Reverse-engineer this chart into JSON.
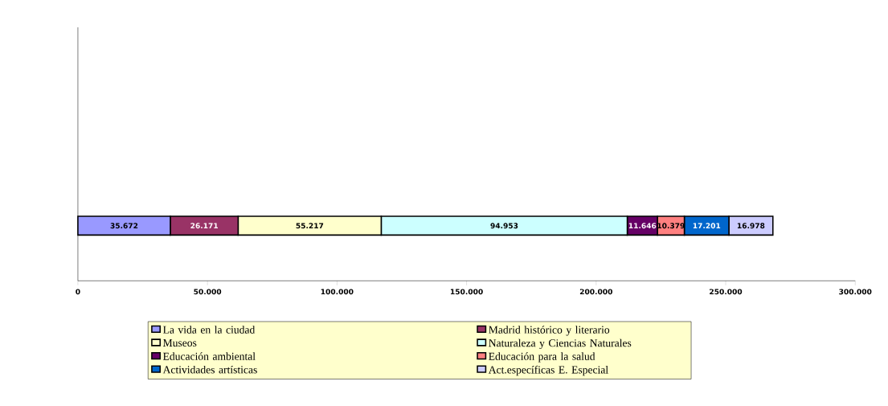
{
  "chart_data": {
    "type": "bar",
    "orientation": "horizontal",
    "stacked": true,
    "categories": [
      null
    ],
    "series": [
      {
        "name": "La vida en la ciudad",
        "color": "#9999ff",
        "values": [
          35672
        ],
        "value_labels": [
          "35.672"
        ]
      },
      {
        "name": "Madrid histórico y literario",
        "color": "#993366",
        "values": [
          26171
        ],
        "value_labels": [
          "26.171"
        ]
      },
      {
        "name": "Museos",
        "color": "#ffffcc",
        "values": [
          55217
        ],
        "value_labels": [
          "55.217"
        ]
      },
      {
        "name": "Naturaleza y Ciencias Naturales",
        "color": "#ccffff",
        "values": [
          94953
        ],
        "value_labels": [
          "94.953"
        ]
      },
      {
        "name": "Educación ambiental",
        "color": "#660066",
        "values": [
          11646
        ],
        "value_labels": [
          "11.646"
        ]
      },
      {
        "name": "Educación para la salud",
        "color": "#ff8080",
        "values": [
          10379
        ],
        "value_labels": [
          "10.379"
        ]
      },
      {
        "name": "Actividades artísticas",
        "color": "#0066cc",
        "values": [
          17201
        ],
        "value_labels": [
          "17.201"
        ]
      },
      {
        "name": "Act.específicas E. Especial",
        "color": "#ccccff",
        "values": [
          16978
        ],
        "value_labels": [
          "16.978"
        ]
      }
    ],
    "xlim": [
      0,
      300000
    ],
    "xticks": [
      {
        "value": 0,
        "label": "0"
      },
      {
        "value": 50000,
        "label": "50.000"
      },
      {
        "value": 100000,
        "label": "100.000"
      },
      {
        "value": 150000,
        "label": "150.000"
      },
      {
        "value": 200000,
        "label": "200.000"
      },
      {
        "value": 250000,
        "label": "250.000"
      },
      {
        "value": 300000,
        "label": "300.000"
      }
    ],
    "legend": "bottom",
    "grid": false
  }
}
